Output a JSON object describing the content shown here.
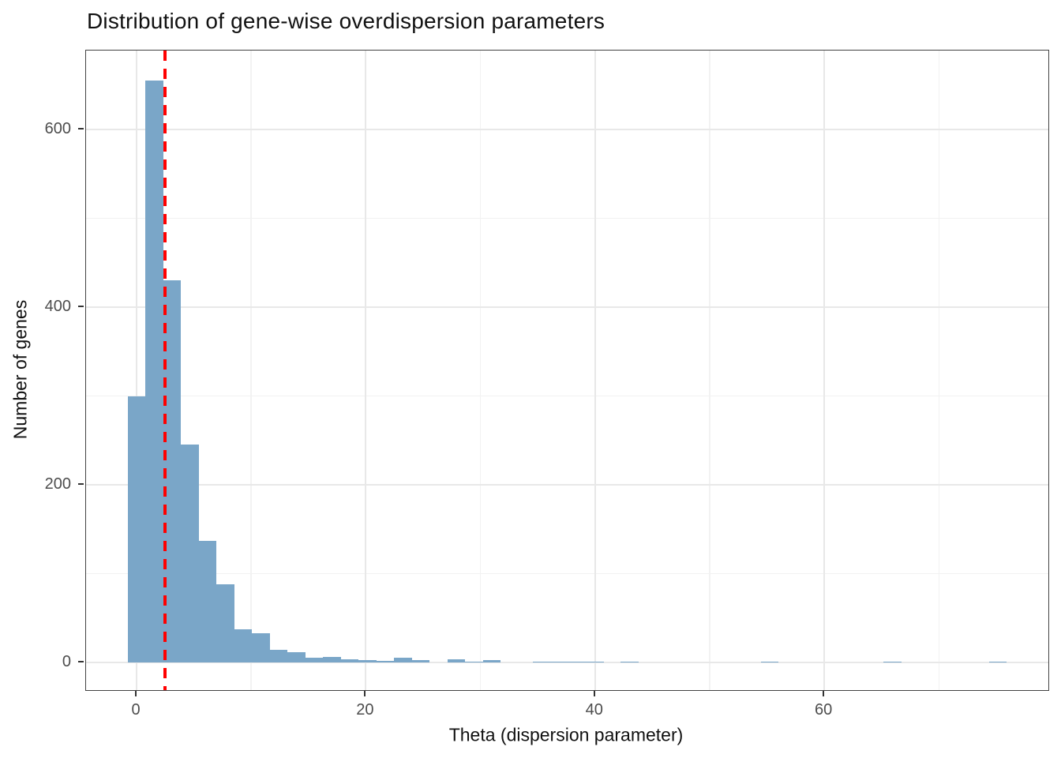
{
  "chart_data": {
    "type": "bar",
    "subtype": "histogram",
    "title": "Distribution of gene-wise overdispersion parameters",
    "xlabel": "Theta (dispersion parameter)",
    "ylabel": "Number of genes",
    "bar_color": "#7AA6C8",
    "bin_width": 1.55,
    "bins": [
      {
        "x": 0.0,
        "count": 300
      },
      {
        "x": 1.55,
        "count": 655
      },
      {
        "x": 3.1,
        "count": 430
      },
      {
        "x": 4.65,
        "count": 245
      },
      {
        "x": 6.2,
        "count": 137
      },
      {
        "x": 7.75,
        "count": 88
      },
      {
        "x": 9.3,
        "count": 37
      },
      {
        "x": 10.85,
        "count": 33
      },
      {
        "x": 12.4,
        "count": 14
      },
      {
        "x": 13.95,
        "count": 12
      },
      {
        "x": 15.5,
        "count": 5
      },
      {
        "x": 17.05,
        "count": 6
      },
      {
        "x": 18.6,
        "count": 4
      },
      {
        "x": 20.15,
        "count": 3
      },
      {
        "x": 21.7,
        "count": 2
      },
      {
        "x": 23.25,
        "count": 5
      },
      {
        "x": 24.8,
        "count": 3
      },
      {
        "x": 27.9,
        "count": 4
      },
      {
        "x": 29.45,
        "count": 1
      },
      {
        "x": 31.0,
        "count": 3
      },
      {
        "x": 35.35,
        "count": 1
      },
      {
        "x": 36.9,
        "count": 1
      },
      {
        "x": 38.45,
        "count": 1
      },
      {
        "x": 40.0,
        "count": 1
      },
      {
        "x": 43.0,
        "count": 1
      },
      {
        "x": 55.25,
        "count": 1
      },
      {
        "x": 65.93,
        "count": 1
      },
      {
        "x": 75.15,
        "count": 1
      }
    ],
    "vline": {
      "x": 2.5,
      "color": "#FF0000",
      "style": "dashed",
      "width": 4,
      "dash": 13,
      "gap": 10
    },
    "x_axis": {
      "ticks": [
        0,
        20,
        40,
        60
      ],
      "minor_ticks": [
        10,
        30,
        50,
        70
      ],
      "lim": [
        -4.41,
        79.55
      ]
    },
    "y_axis": {
      "ticks": [
        0,
        200,
        400,
        600
      ],
      "minor_ticks": [
        100,
        300,
        500
      ],
      "lim": [
        -31.1,
        688.9
      ]
    },
    "grid": true,
    "legend_position": "none",
    "theme": {
      "panel_border": "#424242",
      "grid_major_color": "#E8E8E8",
      "grid_minor_color": "#F2F2F2",
      "tick_color": "#333333",
      "tick_label_color": "#4D4D4D",
      "text_color": "#111111",
      "background": "#FFFFFF"
    }
  }
}
